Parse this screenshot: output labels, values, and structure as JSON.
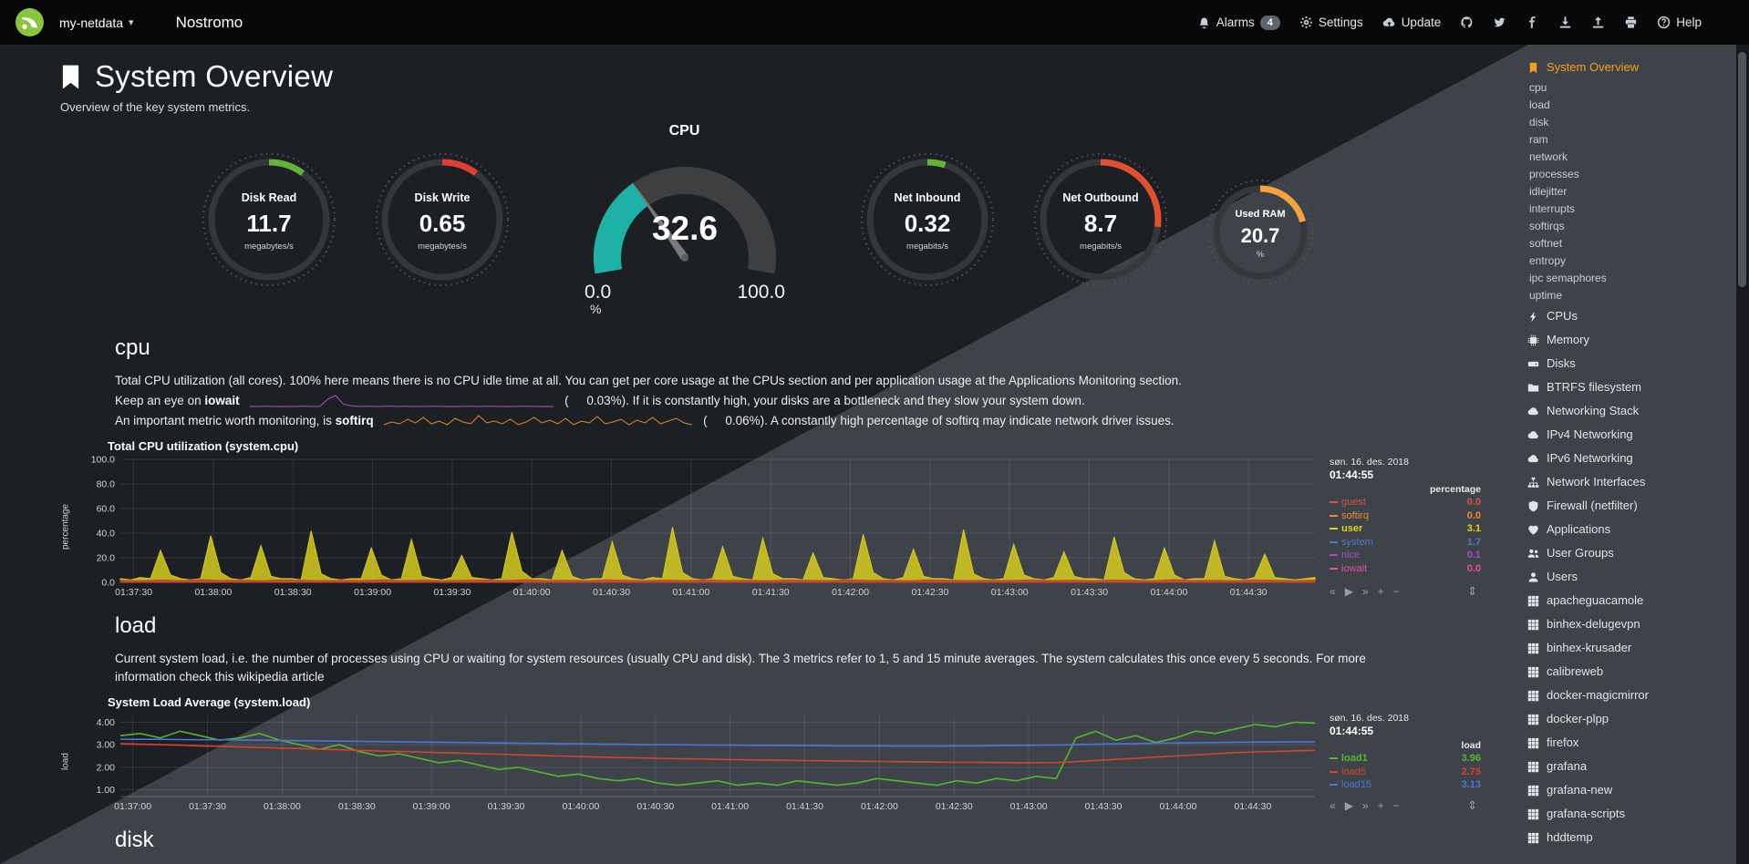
{
  "navbar": {
    "hostname": "my-netdata",
    "brand": "Nostromo",
    "alarms": "Alarms",
    "alarms_count": "4",
    "settings": "Settings",
    "update": "Update",
    "help": "Help"
  },
  "page": {
    "title": "System Overview",
    "subtitle": "Overview of the key system metrics."
  },
  "gauges": [
    {
      "type": "easypie",
      "title": "Disk Read",
      "value": "11.7",
      "unit": "megabytes/s",
      "color": "#63b33a",
      "fraction": 0.1
    },
    {
      "type": "easypie",
      "title": "Disk Write",
      "value": "0.65",
      "unit": "megabytes/s",
      "color": "#dd4030",
      "fraction": 0.1
    },
    {
      "type": "gauge",
      "title": "CPU",
      "value": "32.6",
      "min": "0.0",
      "max": "100.0",
      "unit": "%",
      "color": "#1eb2a6",
      "fraction": 0.326
    },
    {
      "type": "easypie",
      "title": "Net Inbound",
      "value": "0.32",
      "unit": "megabits/s",
      "color": "#63b33a",
      "fraction": 0.05
    },
    {
      "type": "easypie",
      "title": "Net Outbound",
      "value": "8.7",
      "unit": "megabits/s",
      "color": "#e2502f",
      "fraction": 0.27
    },
    {
      "type": "easypie",
      "title": "Used RAM",
      "value": "20.7",
      "unit": "%",
      "color": "#f5a33c",
      "fraction": 0.21,
      "small": true
    }
  ],
  "cpu_section": {
    "heading": "cpu",
    "p1": "Total CPU utilization (all cores). 100% here means there is no CPU idle time at all. You can get per core usage at the CPUs section and per application usage at the Applications Monitoring section.",
    "p2_pre": "Keep an eye on ",
    "p2_term": "iowait",
    "p2_open": "(",
    "p2_value": "0.03",
    "p2_post": "%). If it is constantly high, your disks are a bottleneck and they slow your system down.",
    "p3_pre": "An important metric worth monitoring, is ",
    "p3_term": "softirq",
    "p3_open": "(",
    "p3_value": "0.06",
    "p3_post": "%). A constantly high percentage of softirq may indicate network driver issues."
  },
  "load_section": {
    "heading": "load",
    "p1": "Current system load, i.e. the number of processes using CPU or waiting for system resources (usually CPU and disk). The 3 metrics refer to 1, 5 and 15 minute averages. The system calculates this once every 5 seconds. For more information check this wikipedia article"
  },
  "disk_section": {
    "heading": "disk"
  },
  "chart_data": [
    {
      "id": "system.cpu",
      "type": "area",
      "title": "Total CPU utilization (system.cpu)",
      "ylabel": "percentage",
      "ylim": [
        0,
        100
      ],
      "yticks": [
        0,
        20,
        40,
        60,
        80,
        100
      ],
      "ytick_labels": [
        "0.0",
        "20.0",
        "40.0",
        "60.0",
        "80.0",
        "100.0"
      ],
      "xticks": [
        "01:37:30",
        "01:38:00",
        "01:38:30",
        "01:39:00",
        "01:39:30",
        "01:40:00",
        "01:40:30",
        "01:41:00",
        "01:41:30",
        "01:42:00",
        "01:42:30",
        "01:43:00",
        "01:43:30",
        "01:44:00",
        "01:44:30"
      ],
      "window_seconds": 450,
      "tick_offset": 5,
      "tick_step": 30,
      "legend": {
        "date": "søn. 16. des. 2018",
        "time": "01:44:55",
        "unit": "percentage",
        "entries": [
          {
            "name": "guest",
            "value": "0.0",
            "color": "#d9534f"
          },
          {
            "name": "softirq",
            "value": "0.0",
            "color": "#ef8b2c"
          },
          {
            "name": "user",
            "value": "3.1",
            "color": "#e0d410",
            "bold": true
          },
          {
            "name": "system",
            "value": "1.7",
            "color": "#5079c1"
          },
          {
            "name": "nice",
            "value": "0.1",
            "color": "#a64fbd"
          },
          {
            "name": "iowait",
            "value": "0.0",
            "color": "#e052a0"
          }
        ]
      },
      "series": [
        {
          "name": "user",
          "color": "#d6cb1d",
          "area": true,
          "values": [
            3,
            2,
            4,
            3,
            26,
            6,
            3,
            2,
            3,
            38,
            8,
            3,
            2,
            4,
            30,
            5,
            3,
            3,
            2,
            42,
            7,
            3,
            2,
            3,
            3,
            28,
            6,
            2,
            3,
            35,
            5,
            3,
            2,
            4,
            22,
            4,
            3,
            2,
            3,
            41,
            9,
            3,
            3,
            2,
            26,
            5,
            2,
            3,
            3,
            33,
            6,
            3,
            2,
            4,
            3,
            45,
            8,
            3,
            2,
            3,
            29,
            5,
            3,
            2,
            36,
            7,
            3,
            3,
            2,
            24,
            4,
            3,
            2,
            3,
            39,
            8,
            3,
            2,
            4,
            27,
            5,
            3,
            3,
            2,
            43,
            7,
            3,
            2,
            3,
            31,
            6,
            3,
            2,
            4,
            25,
            5,
            3,
            3,
            2,
            37,
            8,
            3,
            2,
            3,
            28,
            6,
            2,
            3,
            3,
            34,
            5,
            3,
            2,
            4,
            23,
            4,
            3,
            2,
            3,
            4
          ]
        },
        {
          "name": "system",
          "color": "#c0432c",
          "area": true,
          "values": [
            1.6,
            1.3,
            1.9,
            1.4,
            2.2,
            1.5,
            1.8,
            1.3,
            2.0,
            1.6,
            1.4,
            1.7,
            1.5,
            2.1,
            1.4,
            1.8,
            1.3,
            1.6,
            1.9,
            1.4,
            2.2,
            1.5,
            1.7,
            1.3,
            2.0,
            1.6,
            1.4,
            1.8,
            1.5,
            2.1,
            1.4,
            1.7,
            1.3,
            1.9,
            1.6,
            1.4,
            2.2,
            1.5,
            1.8,
            1.3,
            2.0,
            1.6,
            1.4,
            1.7,
            1.5,
            2.1,
            1.4,
            1.8,
            1.3,
            1.9,
            1.6,
            1.4,
            2.2,
            1.5,
            1.7,
            1.3,
            2.0,
            1.6,
            1.4,
            1.8
          ]
        }
      ]
    },
    {
      "id": "system.load",
      "type": "line",
      "title": "System Load Average (system.load)",
      "ylabel": "load",
      "ylim": [
        0.7,
        4.3
      ],
      "yticks": [
        1,
        2,
        3,
        4
      ],
      "ytick_labels": [
        "1.00",
        "2.00",
        "3.00",
        "4.00"
      ],
      "xticks": [
        "01:37:00",
        "01:37:30",
        "01:38:00",
        "01:38:30",
        "01:39:00",
        "01:39:30",
        "01:40:00",
        "01:40:30",
        "01:41:00",
        "01:41:30",
        "01:42:00",
        "01:42:30",
        "01:43:00",
        "01:43:30",
        "01:44:00",
        "01:44:30"
      ],
      "window_seconds": 480,
      "tick_offset": 5,
      "tick_step": 30,
      "legend": {
        "date": "søn. 16. des. 2018",
        "time": "01:44:55",
        "unit": "load",
        "entries": [
          {
            "name": "load1",
            "value": "3.96",
            "color": "#5cb331",
            "bold": true
          },
          {
            "name": "load5",
            "value": "2.75",
            "color": "#d9432e"
          },
          {
            "name": "load15",
            "value": "3.13",
            "color": "#4a77d4"
          }
        ]
      },
      "series": [
        {
          "name": "load1",
          "color": "#5cb331",
          "area": false,
          "values": [
            3.4,
            3.5,
            3.3,
            3.6,
            3.4,
            3.2,
            3.3,
            3.5,
            3.2,
            3.0,
            2.8,
            3.0,
            2.7,
            2.5,
            2.6,
            2.4,
            2.2,
            2.3,
            2.1,
            1.9,
            2.0,
            1.8,
            1.6,
            1.7,
            1.5,
            1.4,
            1.5,
            1.3,
            1.2,
            1.3,
            1.4,
            1.2,
            1.3,
            1.2,
            1.4,
            1.3,
            1.2,
            1.3,
            1.5,
            1.4,
            1.3,
            1.2,
            1.4,
            1.3,
            1.5,
            1.4,
            1.6,
            1.5,
            3.3,
            3.6,
            3.2,
            3.4,
            3.1,
            3.3,
            3.6,
            3.5,
            3.7,
            3.9,
            3.8,
            4.0,
            3.96
          ]
        },
        {
          "name": "load5",
          "color": "#d9432e",
          "area": false,
          "values": [
            3.05,
            3.02,
            3.0,
            2.98,
            2.95,
            2.93,
            2.9,
            2.88,
            2.85,
            2.83,
            2.8,
            2.78,
            2.75,
            2.72,
            2.7,
            2.68,
            2.65,
            2.63,
            2.6,
            2.58,
            2.55,
            2.53,
            2.5,
            2.48,
            2.45,
            2.43,
            2.42,
            2.4,
            2.38,
            2.37,
            2.35,
            2.34,
            2.32,
            2.31,
            2.3,
            2.29,
            2.28,
            2.27,
            2.26,
            2.25,
            2.24,
            2.23,
            2.22,
            2.22,
            2.21,
            2.2,
            2.2,
            2.21,
            2.25,
            2.3,
            2.35,
            2.4,
            2.45,
            2.5,
            2.55,
            2.6,
            2.65,
            2.68,
            2.7,
            2.73,
            2.75
          ]
        },
        {
          "name": "load15",
          "color": "#4a77d4",
          "area": false,
          "values": [
            3.25,
            3.24,
            3.24,
            3.23,
            3.22,
            3.22,
            3.21,
            3.2,
            3.19,
            3.18,
            3.17,
            3.16,
            3.15,
            3.14,
            3.13,
            3.12,
            3.11,
            3.1,
            3.09,
            3.08,
            3.07,
            3.06,
            3.05,
            3.04,
            3.03,
            3.02,
            3.01,
            3.0,
            3.0,
            2.99,
            2.98,
            2.98,
            2.97,
            2.97,
            2.96,
            2.96,
            2.95,
            2.95,
            2.95,
            2.94,
            2.94,
            2.94,
            2.95,
            2.95,
            2.96,
            2.97,
            2.98,
            2.99,
            3.0,
            3.02,
            3.04,
            3.05,
            3.07,
            3.08,
            3.09,
            3.1,
            3.11,
            3.12,
            3.12,
            3.13,
            3.13
          ]
        }
      ]
    },
    {
      "id": "iowait_sparkline",
      "type": "line",
      "color": "#b44fc4",
      "values": [
        0,
        0,
        0.02,
        0,
        0.01,
        0,
        0,
        0.03,
        0,
        0,
        0.6,
        0.9,
        0.2,
        0.05,
        0,
        0.02,
        0,
        0.01,
        0.03,
        0,
        0.02,
        0,
        0,
        0.01,
        0.02,
        0,
        0.01,
        0,
        0.02,
        0,
        0.01,
        0.02,
        0,
        0.01,
        0,
        0.02,
        0.01,
        0,
        0.01,
        0
      ]
    },
    {
      "id": "softirq_sparkline",
      "type": "line",
      "color": "#d98d27",
      "values": [
        0.2,
        0.5,
        0.3,
        0.8,
        0.4,
        1,
        0.3,
        0.6,
        0.2,
        0.9,
        0.5,
        0.3,
        1.2,
        0.4,
        0.6,
        0.3,
        0.8,
        0.2,
        0.5,
        1,
        0.4,
        0.7,
        0.3,
        0.9,
        0.2,
        0.6,
        0.4,
        1.1,
        0.3,
        0.5,
        0.8,
        0.2,
        0.7,
        0.4,
        1,
        0.3,
        0.6,
        0.9,
        0.4,
        0.2
      ]
    }
  ],
  "sidebar": {
    "items": [
      {
        "label": "System Overview",
        "icon": "bookmark-icon",
        "active": true
      },
      {
        "label": "cpu",
        "sub": true
      },
      {
        "label": "load",
        "sub": true
      },
      {
        "label": "disk",
        "sub": true
      },
      {
        "label": "ram",
        "sub": true
      },
      {
        "label": "network",
        "sub": true
      },
      {
        "label": "processes",
        "sub": true
      },
      {
        "label": "idlejitter",
        "sub": true
      },
      {
        "label": "interrupts",
        "sub": true
      },
      {
        "label": "softirqs",
        "sub": true
      },
      {
        "label": "softnet",
        "sub": true
      },
      {
        "label": "entropy",
        "sub": true
      },
      {
        "label": "ipc semaphores",
        "sub": true
      },
      {
        "label": "uptime",
        "sub": true
      },
      {
        "label": "CPUs",
        "icon": "bolt-icon"
      },
      {
        "label": "Memory",
        "icon": "memory-icon"
      },
      {
        "label": "Disks",
        "icon": "hdd-icon"
      },
      {
        "label": "BTRFS filesystem",
        "icon": "folder-icon"
      },
      {
        "label": "Networking Stack",
        "icon": "cloud-icon"
      },
      {
        "label": "IPv4 Networking",
        "icon": "cloud-icon"
      },
      {
        "label": "IPv6 Networking",
        "icon": "cloud-icon"
      },
      {
        "label": "Network Interfaces",
        "icon": "sitemap-icon"
      },
      {
        "label": "Firewall (netfilter)",
        "icon": "shield-icon"
      },
      {
        "label": "Applications",
        "icon": "heartbeat-icon"
      },
      {
        "label": "User Groups",
        "icon": "users-icon"
      },
      {
        "label": "Users",
        "icon": "user-icon"
      },
      {
        "label": "apacheguacamole",
        "icon": "grid-icon"
      },
      {
        "label": "binhex-delugevpn",
        "icon": "grid-icon"
      },
      {
        "label": "binhex-krusader",
        "icon": "grid-icon"
      },
      {
        "label": "calibreweb",
        "icon": "grid-icon"
      },
      {
        "label": "docker-magicmirror",
        "icon": "grid-icon"
      },
      {
        "label": "docker-plpp",
        "icon": "grid-icon"
      },
      {
        "label": "firefox",
        "icon": "grid-icon"
      },
      {
        "label": "grafana",
        "icon": "grid-icon"
      },
      {
        "label": "grafana-new",
        "icon": "grid-icon"
      },
      {
        "label": "grafana-scripts",
        "icon": "grid-icon"
      },
      {
        "label": "hddtemp",
        "icon": "grid-icon"
      }
    ]
  }
}
